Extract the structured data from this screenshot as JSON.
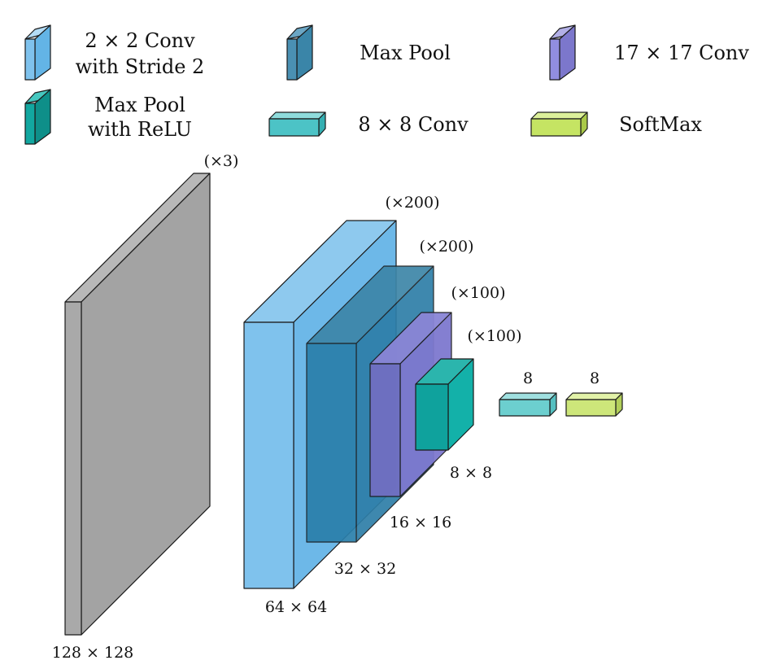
{
  "legend": [
    {
      "line1": "2 × 2 Conv",
      "line2": "with Stride 2",
      "color": "#7fc2ed"
    },
    {
      "line1": "Max Pool",
      "line2": "",
      "color": "#3a85a8"
    },
    {
      "line1": "17 × 17 Conv",
      "line2": "",
      "color": "#8b86d6"
    },
    {
      "line1": "Max Pool",
      "line2": "with ReLU",
      "color": "#12a7a0"
    },
    {
      "line1": "8 × 8 Conv",
      "line2": "",
      "color": "#4cc3c6"
    },
    {
      "line1": "SoftMax",
      "line2": "",
      "color": "#c5e463"
    }
  ],
  "layers": {
    "input": {
      "channels": "(×3)",
      "size": "128 × 128",
      "color": "#a6a6a6"
    },
    "conv2": {
      "channels": "(×200)",
      "size": "64 × 64",
      "color": "#7fc2ed"
    },
    "pool": {
      "channels": "(×200)",
      "size": "32 × 32",
      "color": "#2a7fa9"
    },
    "conv17": {
      "channels": "(×100)",
      "size": "16 × 16",
      "color": "#716fc2"
    },
    "relu": {
      "channels": "(×100)",
      "size": "8 × 8",
      "color": "#12a7a0"
    },
    "conv8": {
      "channels": "8",
      "color": "#6ccfcf"
    },
    "softmax": {
      "channels": "8",
      "color": "#cde67a"
    }
  }
}
